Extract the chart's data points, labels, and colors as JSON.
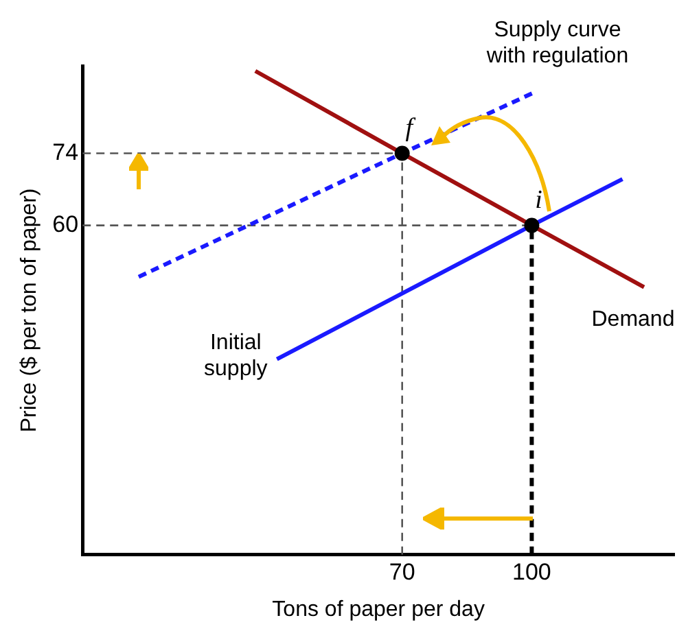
{
  "chart_data": {
    "type": "line",
    "xlabel": "Tons of paper per day",
    "ylabel": "Price ($ per ton of paper)",
    "xlim": [
      -4,
      133
    ],
    "xticks": [
      70,
      100
    ],
    "ylim": [
      -4,
      91
    ],
    "yticks": [
      60,
      74
    ],
    "grid": false,
    "legend": false,
    "series": [
      {
        "name": "Demand",
        "color": "#a01010",
        "x": [
          36,
          70,
          100,
          126
        ],
        "values": [
          90,
          74,
          60,
          48
        ]
      },
      {
        "name": "Initial\nsupply",
        "color": "#1a1aff",
        "x": [
          41,
          100,
          121
        ],
        "values": [
          34,
          60,
          69
        ]
      },
      {
        "type": "line",
        "color": "#1a1aff",
        "line_style": "dashed",
        "x": [
          9,
          70,
          101
        ],
        "values": [
          50,
          74,
          86
        ]
      },
      {
        "type": "line",
        "color": "#555555",
        "line_style": "dashed",
        "x": [
          -4,
          70
        ],
        "values": [
          74,
          74
        ]
      },
      {
        "type": "line",
        "color": "#555555",
        "line_style": "dashed",
        "x": [
          -4,
          100
        ],
        "values": [
          60,
          60
        ]
      },
      {
        "type": "line",
        "color": "#555555",
        "line_style": "dashed",
        "x": [
          70,
          70
        ],
        "values": [
          -4,
          74
        ]
      },
      {
        "type": "line",
        "color": "#000000",
        "line_style": "dashed",
        "x": [
          100,
          100
        ],
        "values": [
          -4,
          60
        ]
      },
      {
        "type": "scatter",
        "color": "#000000",
        "marker": "circle",
        "x": [
          70,
          100
        ],
        "values": [
          74,
          60
        ]
      }
    ],
    "annotations": [
      "Supply curve\nwith regulation",
      {
        "text": "f",
        "x": 70,
        "y": 74
      },
      {
        "text": "i",
        "x": 100,
        "y": 60
      }
    ]
  }
}
